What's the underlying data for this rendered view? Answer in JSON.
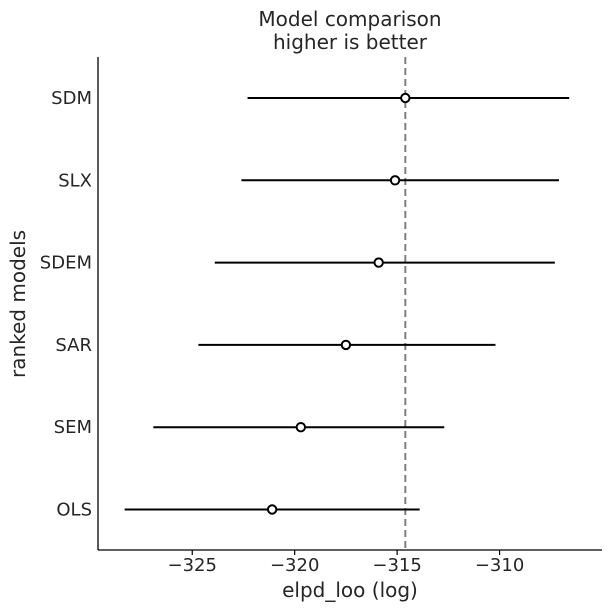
{
  "chart_data": {
    "type": "forest",
    "title": "Model comparison",
    "subtitle": "higher is better",
    "xlabel": "elpd_loo (log)",
    "ylabel": "ranked models",
    "xticks": [
      -325,
      -320,
      -315,
      -310
    ],
    "xtick_labels": [
      "−325",
      "−320",
      "−315",
      "−310"
    ],
    "xlim": [
      -329.6,
      -305.0
    ],
    "grid": false,
    "models": [
      {
        "name": "SDM",
        "elpd": -314.6,
        "lower": -322.3,
        "upper": -306.6
      },
      {
        "name": "SLX",
        "elpd": -315.1,
        "lower": -322.6,
        "upper": -307.1
      },
      {
        "name": "SDEM",
        "elpd": -315.9,
        "lower": -323.9,
        "upper": -307.3
      },
      {
        "name": "SAR",
        "elpd": -317.5,
        "lower": -324.7,
        "upper": -310.2
      },
      {
        "name": "SEM",
        "elpd": -319.7,
        "lower": -326.9,
        "upper": -312.7
      },
      {
        "name": "OLS",
        "elpd": -321.1,
        "lower": -328.3,
        "upper": -313.9
      }
    ],
    "reference_line": {
      "value": -314.6,
      "style": "dashed",
      "color": "#7f7f7f"
    },
    "colors": {
      "marks": "#000000",
      "marker_fill": "#ffffff",
      "text": "#262626",
      "axis": "#000000"
    }
  }
}
